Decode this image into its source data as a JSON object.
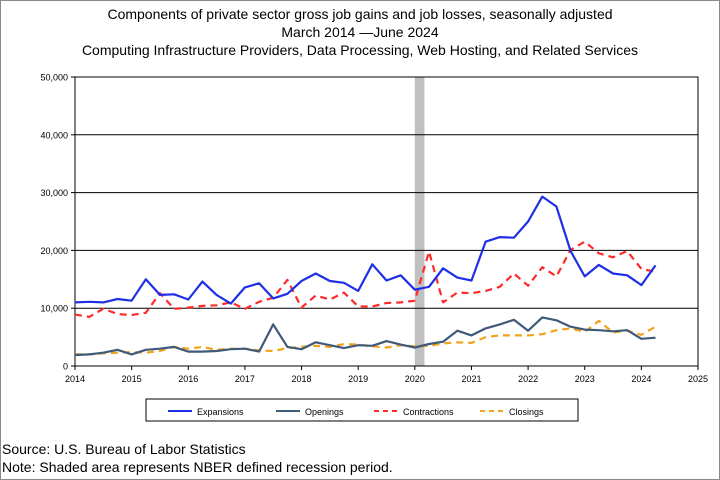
{
  "titles": {
    "line1": "Components of private sector gross job gains and job losses, seasonally adjusted",
    "line2": "March 2014 —June 2024",
    "line3": "Computing Infrastructure Providers, Data Processing, Web Hosting, and Related Services"
  },
  "footnotes": {
    "source": "Source: U.S. Bureau of Labor Statistics",
    "note": "Note: Shaded area represents NBER defined recession period."
  },
  "chart_data": {
    "type": "line",
    "x_range": [
      2014,
      2025
    ],
    "ylim": [
      0,
      50000
    ],
    "y_ticks": [
      0,
      10000,
      20000,
      30000,
      40000,
      50000
    ],
    "y_tick_labels": [
      "0",
      "10,000",
      "20,000",
      "30,000",
      "40,000",
      "50,000"
    ],
    "x_ticks": [
      2014,
      2015,
      2016,
      2017,
      2018,
      2019,
      2020,
      2021,
      2022,
      2023,
      2024,
      2025
    ],
    "x_tick_labels": [
      "2014",
      "2015",
      "2016",
      "2017",
      "2018",
      "2019",
      "2020",
      "2021",
      "2022",
      "2023",
      "2024",
      "2025"
    ],
    "grid": "horizontal",
    "legend_position": "bottom",
    "recession": {
      "start": 2020.0,
      "end": 2020.17,
      "color": "#c0c0c0"
    },
    "quarters": [
      "2014 Q1",
      "2014 Q2",
      "2014 Q3",
      "2014 Q4",
      "2015 Q1",
      "2015 Q2",
      "2015 Q3",
      "2015 Q4",
      "2016 Q1",
      "2016 Q2",
      "2016 Q3",
      "2016 Q4",
      "2017 Q1",
      "2017 Q2",
      "2017 Q3",
      "2017 Q4",
      "2018 Q1",
      "2018 Q2",
      "2018 Q3",
      "2018 Q4",
      "2019 Q1",
      "2019 Q2",
      "2019 Q3",
      "2019 Q4",
      "2020 Q1",
      "2020 Q2",
      "2020 Q3",
      "2020 Q4",
      "2021 Q1",
      "2021 Q2",
      "2021 Q3",
      "2021 Q4",
      "2022 Q1",
      "2022 Q2",
      "2022 Q3",
      "2022 Q4",
      "2023 Q1",
      "2023 Q2",
      "2023 Q3",
      "2023 Q4",
      "2024 Q1",
      "2024 Q2"
    ],
    "x": [
      2014.0,
      2014.25,
      2014.5,
      2014.75,
      2015.0,
      2015.25,
      2015.5,
      2015.75,
      2016.0,
      2016.25,
      2016.5,
      2016.75,
      2017.0,
      2017.25,
      2017.5,
      2017.75,
      2018.0,
      2018.25,
      2018.5,
      2018.75,
      2019.0,
      2019.25,
      2019.5,
      2019.75,
      2020.0,
      2020.25,
      2020.5,
      2020.75,
      2021.0,
      2021.25,
      2021.5,
      2021.75,
      2022.0,
      2022.25,
      2022.5,
      2022.75,
      2023.0,
      2023.25,
      2023.5,
      2023.75,
      2024.0,
      2024.25
    ],
    "series": [
      {
        "name": "Expansions",
        "color": "#1f2fe6",
        "dash": "solid",
        "values": [
          11000,
          11100,
          11000,
          11600,
          11300,
          15000,
          12300,
          12400,
          11500,
          14600,
          12300,
          10800,
          13600,
          14300,
          11700,
          12500,
          14700,
          16000,
          14700,
          14400,
          13000,
          17600,
          14800,
          15700,
          13200,
          13700,
          16900,
          15300,
          14800,
          21500,
          22300,
          22200,
          25000,
          29300,
          27600,
          19900,
          15500,
          17500,
          16000,
          15700,
          14000,
          17400
        ]
      },
      {
        "name": "Openings",
        "color": "#3f5a78",
        "dash": "solid",
        "values": [
          1900,
          2000,
          2300,
          2800,
          2000,
          2800,
          3000,
          3300,
          2500,
          2500,
          2600,
          2900,
          3000,
          2500,
          7200,
          3300,
          2900,
          4100,
          3600,
          3100,
          3600,
          3500,
          4300,
          3700,
          3200,
          3800,
          4200,
          6100,
          5300,
          6500,
          7200,
          8000,
          6100,
          8400,
          7900,
          6800,
          6300,
          6200,
          6000,
          6200,
          4700,
          4900
        ]
      },
      {
        "name": "Contractions",
        "color": "#ff2a2a",
        "dash": "dashed",
        "values": [
          8900,
          8500,
          9900,
          9000,
          8800,
          9200,
          12600,
          9900,
          10100,
          10400,
          10500,
          11000,
          9900,
          11100,
          11800,
          14900,
          10100,
          12200,
          11500,
          12700,
          10300,
          10300,
          10900,
          11000,
          11300,
          19800,
          11000,
          12700,
          12600,
          13000,
          13700,
          16000,
          13900,
          17100,
          15500,
          20100,
          21500,
          19500,
          18800,
          19900,
          16800,
          16300
        ]
      },
      {
        "name": "Closings",
        "color": "#f2a31b",
        "dash": "dashed",
        "values": [
          2000,
          2000,
          2200,
          2300,
          2400,
          2300,
          2600,
          3300,
          3000,
          3300,
          2800,
          3000,
          3000,
          2700,
          2600,
          3100,
          3300,
          3500,
          3300,
          3800,
          3700,
          3400,
          3200,
          3600,
          3400,
          3500,
          3900,
          4100,
          4000,
          5000,
          5300,
          5300,
          5300,
          5500,
          6200,
          6500,
          5900,
          7800,
          5800,
          6100,
          5400,
          6800
        ]
      }
    ]
  }
}
